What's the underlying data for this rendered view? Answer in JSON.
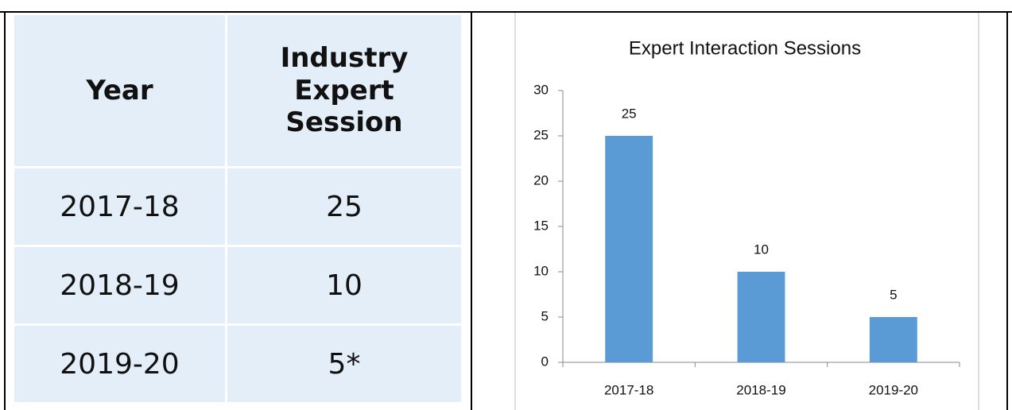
{
  "table": {
    "header": [
      "Year",
      "Industry Expert Session"
    ],
    "rows": [
      [
        "2017-18",
        "25"
      ],
      [
        "2018-19",
        "10"
      ],
      [
        "2019-20",
        "5*"
      ]
    ]
  },
  "chart_data": {
    "type": "bar",
    "title": "Expert Interaction Sessions",
    "categories": [
      "2017-18",
      "2018-19",
      "2019-20"
    ],
    "values": [
      25,
      10,
      5
    ],
    "color": "#5b9bd5",
    "ylim": [
      0,
      30
    ],
    "yticks": [
      0,
      5,
      10,
      15,
      20,
      25,
      30
    ],
    "grid": false
  }
}
